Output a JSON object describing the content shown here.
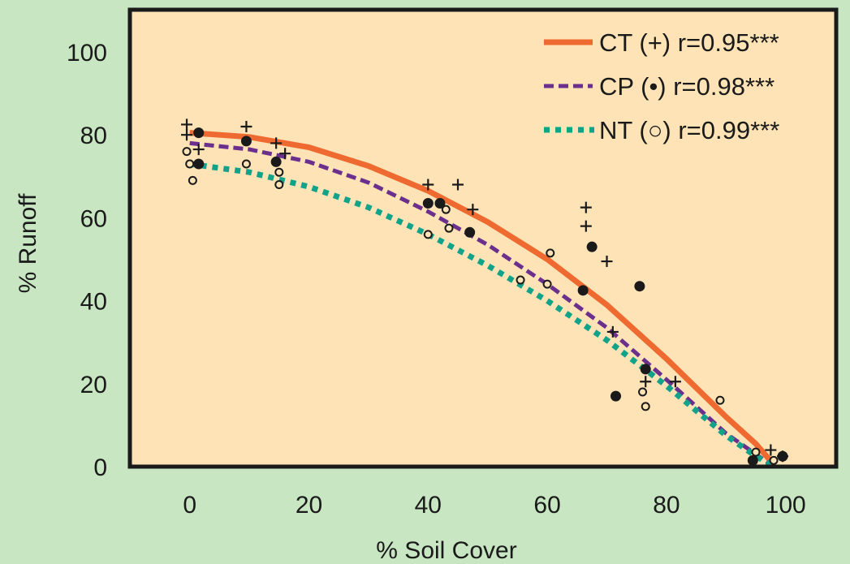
{
  "chart_data": {
    "type": "scatter",
    "xlabel": "% Soil Cover",
    "ylabel": "% Runoff",
    "xlim": [
      -10,
      108
    ],
    "ylim": [
      0,
      108
    ],
    "x_ticks": [
      "0",
      "20",
      "40",
      "60",
      "80",
      "100"
    ],
    "y_ticks": [
      "0",
      "20",
      "40",
      "60",
      "80",
      "100"
    ],
    "legend_position": "top-right",
    "grid": false,
    "colors": {
      "background": "#c8e6c2",
      "plot_area": "#fde3b5",
      "frame": "#1a1a1a",
      "ct": "#ef6a30",
      "cp": "#6b2f8e",
      "nt": "#11a38a"
    },
    "series": [
      {
        "name": "CT (+) r=0.95***",
        "marker": "plus",
        "line_style": "solid",
        "points": [
          [
            -0.5,
            82.5
          ],
          [
            -0.5,
            80
          ],
          [
            1.5,
            76.5
          ],
          [
            9.5,
            82
          ],
          [
            14.5,
            78
          ],
          [
            16,
            75.5
          ],
          [
            40,
            68
          ],
          [
            45,
            68
          ],
          [
            47.5,
            62
          ],
          [
            66.5,
            62.5
          ],
          [
            66.5,
            58
          ],
          [
            70,
            49.5
          ],
          [
            71,
            32.5
          ],
          [
            76.5,
            20.5
          ],
          [
            81.5,
            20.5
          ],
          [
            97.5,
            4
          ],
          [
            99.5,
            2.5
          ]
        ],
        "curve": [
          [
            0,
            80.5
          ],
          [
            10,
            79.5
          ],
          [
            20,
            77
          ],
          [
            30,
            72.5
          ],
          [
            40,
            66.5
          ],
          [
            50,
            59
          ],
          [
            60,
            50
          ],
          [
            70,
            39
          ],
          [
            80,
            26
          ],
          [
            90,
            12
          ],
          [
            95,
            5.5
          ],
          [
            98,
            0.5
          ]
        ]
      },
      {
        "name": "CP (•) r=0.98***",
        "marker": "filled-circle",
        "line_style": "dashed",
        "points": [
          [
            1.5,
            80.5
          ],
          [
            1.5,
            73
          ],
          [
            9.5,
            78.5
          ],
          [
            14.5,
            73.5
          ],
          [
            40,
            63.5
          ],
          [
            42,
            63.5
          ],
          [
            47,
            56.5
          ],
          [
            66,
            42.5
          ],
          [
            67.5,
            53
          ],
          [
            75.5,
            43.5
          ],
          [
            76.5,
            23.5
          ],
          [
            71.5,
            17
          ],
          [
            94.5,
            1.5
          ],
          [
            99.5,
            2.5
          ]
        ],
        "curve": [
          [
            0,
            78
          ],
          [
            10,
            76.5
          ],
          [
            20,
            73.5
          ],
          [
            30,
            68.5
          ],
          [
            40,
            61.5
          ],
          [
            50,
            53.5
          ],
          [
            60,
            44
          ],
          [
            70,
            33.5
          ],
          [
            80,
            21
          ],
          [
            90,
            8
          ],
          [
            95,
            3
          ],
          [
            97.5,
            0.5
          ]
        ]
      },
      {
        "name": "NT (○) r=0.99***",
        "marker": "open-circle",
        "line_style": "dotted",
        "points": [
          [
            -0.5,
            76
          ],
          [
            0,
            73
          ],
          [
            0.5,
            69
          ],
          [
            9.5,
            73
          ],
          [
            15,
            71
          ],
          [
            15,
            68
          ],
          [
            40,
            56
          ],
          [
            43,
            62
          ],
          [
            43.5,
            57.5
          ],
          [
            55.5,
            45
          ],
          [
            60,
            44
          ],
          [
            60.5,
            51.5
          ],
          [
            76,
            18
          ],
          [
            76.5,
            14.5
          ],
          [
            89,
            16
          ],
          [
            95,
            3.5
          ],
          [
            98,
            1.5
          ]
        ],
        "curve": [
          [
            0,
            73
          ],
          [
            10,
            71
          ],
          [
            20,
            67.5
          ],
          [
            30,
            62.5
          ],
          [
            40,
            56
          ],
          [
            50,
            48.5
          ],
          [
            60,
            40
          ],
          [
            70,
            30.5
          ],
          [
            80,
            19.5
          ],
          [
            90,
            7.5
          ],
          [
            95,
            2.5
          ],
          [
            97.5,
            0.5
          ]
        ]
      }
    ]
  }
}
